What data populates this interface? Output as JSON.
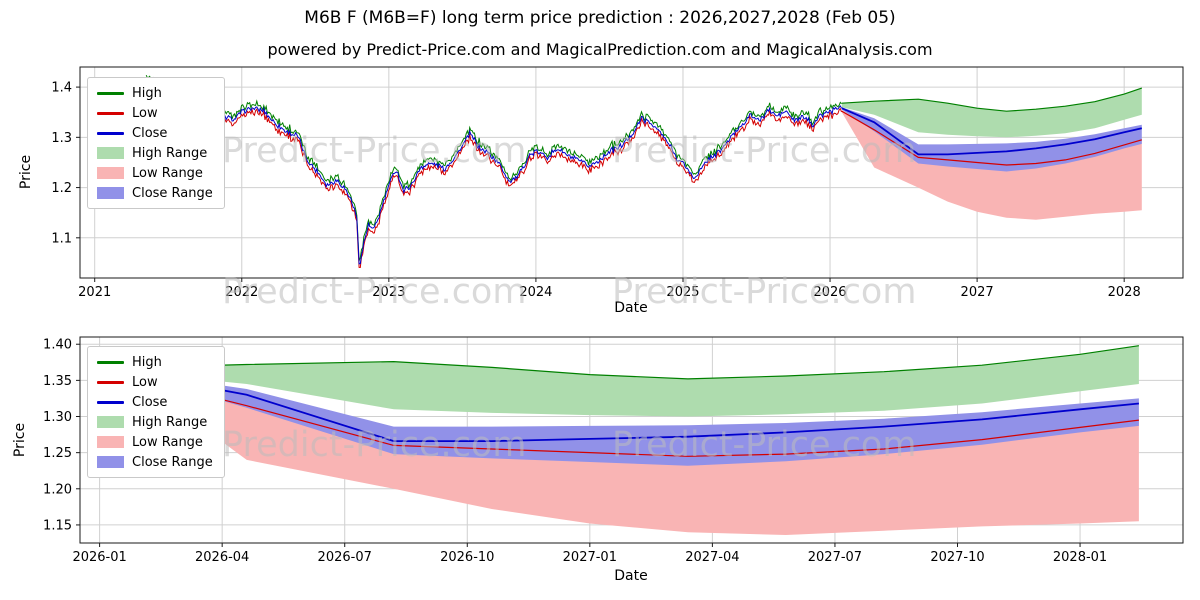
{
  "title": "M6B F (M6B=F) long term price prediction : 2026,2027,2028 (Feb 05)",
  "subtitle": "powered by Predict-Price.com and MagicalPrediction.com and MagicalAnalysis.com",
  "watermark": "Predict-Price.com",
  "colors": {
    "high": "#008000",
    "low": "#d40000",
    "close": "#0000cd",
    "high_range": "#aedcae",
    "low_range": "#f9b4b4",
    "close_range": "#9191e8",
    "grid": "#d0d0d0",
    "frame": "#1a1a1a",
    "background": "#ffffff"
  },
  "legend": {
    "items": [
      {
        "label": "High",
        "swatch": "line",
        "color": "high"
      },
      {
        "label": "Low",
        "swatch": "line",
        "color": "low"
      },
      {
        "label": "Close",
        "swatch": "line",
        "color": "close"
      },
      {
        "label": "High Range",
        "swatch": "patch",
        "color": "high_range"
      },
      {
        "label": "Low Range",
        "swatch": "patch",
        "color": "low_range"
      },
      {
        "label": "Close Range",
        "swatch": "patch",
        "color": "close_range"
      }
    ]
  },
  "chart_data": [
    {
      "id": "history-and-forecast",
      "type": "line",
      "xlabel": "Date",
      "ylabel": "Price",
      "grid": true,
      "legend_position": "upper left",
      "xlim": [
        2020.9,
        2028.4
      ],
      "ylim": [
        1.02,
        1.44
      ],
      "x_ticks": [
        {
          "v": 2021,
          "label": "2021"
        },
        {
          "v": 2022,
          "label": "2022"
        },
        {
          "v": 2023,
          "label": "2023"
        },
        {
          "v": 2024,
          "label": "2024"
        },
        {
          "v": 2025,
          "label": "2025"
        },
        {
          "v": 2026,
          "label": "2026"
        },
        {
          "v": 2027,
          "label": "2027"
        },
        {
          "v": 2028,
          "label": "2028"
        }
      ],
      "y_ticks": [
        {
          "v": 1.1,
          "label": "1.1"
        },
        {
          "v": 1.2,
          "label": "1.2"
        },
        {
          "v": 1.3,
          "label": "1.3"
        },
        {
          "v": 1.4,
          "label": "1.4"
        }
      ],
      "history": {
        "note": "noisy daily High/Low/Close series, trend keypoints below",
        "noise_amplitude": 0.005,
        "high_low_spread": 0.009,
        "t": [
          2021.35,
          2021.42,
          2021.5,
          2021.58,
          2021.65,
          2021.72,
          2021.8,
          2021.88,
          2021.95,
          2022.0,
          2022.08,
          2022.15,
          2022.22,
          2022.3,
          2022.38,
          2022.45,
          2022.52,
          2022.58,
          2022.65,
          2022.7,
          2022.74,
          2022.78,
          2022.8,
          2022.83,
          2022.86,
          2022.9,
          2022.95,
          2023.0,
          2023.05,
          2023.1,
          2023.16,
          2023.22,
          2023.3,
          2023.38,
          2023.45,
          2023.5,
          2023.55,
          2023.62,
          2023.68,
          2023.75,
          2023.82,
          2023.88,
          2023.95,
          2024.0,
          2024.08,
          2024.15,
          2024.22,
          2024.3,
          2024.36,
          2024.42,
          2024.5,
          2024.58,
          2024.65,
          2024.72,
          2024.78,
          2024.84,
          2024.9,
          2024.96,
          2025.02,
          2025.07,
          2025.12,
          2025.18,
          2025.25,
          2025.32,
          2025.4,
          2025.46,
          2025.52,
          2025.58,
          2025.64,
          2025.7,
          2025.76,
          2025.82,
          2025.88,
          2025.94,
          2026.0,
          2026.08
        ],
        "close": [
          1.414,
          1.398,
          1.388,
          1.393,
          1.378,
          1.372,
          1.362,
          1.342,
          1.335,
          1.352,
          1.358,
          1.352,
          1.33,
          1.312,
          1.302,
          1.252,
          1.23,
          1.205,
          1.215,
          1.198,
          1.178,
          1.145,
          1.042,
          1.09,
          1.125,
          1.115,
          1.158,
          1.205,
          1.238,
          1.192,
          1.208,
          1.242,
          1.248,
          1.238,
          1.262,
          1.282,
          1.308,
          1.278,
          1.268,
          1.248,
          1.212,
          1.222,
          1.262,
          1.272,
          1.262,
          1.278,
          1.262,
          1.252,
          1.242,
          1.252,
          1.272,
          1.282,
          1.305,
          1.338,
          1.328,
          1.312,
          1.288,
          1.258,
          1.242,
          1.218,
          1.235,
          1.258,
          1.272,
          1.298,
          1.325,
          1.345,
          1.332,
          1.355,
          1.342,
          1.352,
          1.332,
          1.342,
          1.326,
          1.345,
          1.352,
          1.362
        ]
      },
      "prediction": {
        "t": [
          2026.08,
          2026.3,
          2026.6,
          2026.8,
          2027.0,
          2027.2,
          2027.4,
          2027.6,
          2027.8,
          2028.0,
          2028.12
        ],
        "close": [
          1.358,
          1.33,
          1.266,
          1.266,
          1.269,
          1.272,
          1.278,
          1.286,
          1.296,
          1.31,
          1.318
        ],
        "close_upper": [
          1.36,
          1.338,
          1.286,
          1.286,
          1.287,
          1.288,
          1.291,
          1.297,
          1.306,
          1.318,
          1.325
        ],
        "close_lower": [
          1.355,
          1.312,
          1.248,
          1.242,
          1.237,
          1.232,
          1.238,
          1.248,
          1.261,
          1.278,
          1.287
        ],
        "high_upper": [
          1.368,
          1.372,
          1.376,
          1.368,
          1.358,
          1.352,
          1.356,
          1.362,
          1.371,
          1.386,
          1.398
        ],
        "high_lower": [
          1.36,
          1.345,
          1.31,
          1.305,
          1.302,
          1.3,
          1.303,
          1.308,
          1.318,
          1.335,
          1.345
        ],
        "low_upper": [
          1.352,
          1.315,
          1.26,
          1.255,
          1.25,
          1.245,
          1.248,
          1.255,
          1.268,
          1.285,
          1.295
        ],
        "low_lower": [
          1.35,
          1.24,
          1.2,
          1.172,
          1.152,
          1.14,
          1.136,
          1.142,
          1.148,
          1.152,
          1.155
        ]
      }
    },
    {
      "id": "forecast-detail",
      "type": "area",
      "xlabel": "Date",
      "ylabel": "Price",
      "grid": true,
      "legend_position": "upper left",
      "xlim": [
        2025.96,
        2028.21
      ],
      "ylim": [
        1.125,
        1.41
      ],
      "x_ticks": [
        {
          "v": 2026.0,
          "label": "2026-01"
        },
        {
          "v": 2026.25,
          "label": "2026-04"
        },
        {
          "v": 2026.5,
          "label": "2026-07"
        },
        {
          "v": 2026.75,
          "label": "2026-10"
        },
        {
          "v": 2027.0,
          "label": "2027-01"
        },
        {
          "v": 2027.25,
          "label": "2027-04"
        },
        {
          "v": 2027.5,
          "label": "2027-07"
        },
        {
          "v": 2027.75,
          "label": "2027-10"
        },
        {
          "v": 2028.0,
          "label": "2028-01"
        }
      ],
      "y_ticks": [
        {
          "v": 1.4,
          "label": "1.40"
        },
        {
          "v": 1.35,
          "label": "1.35"
        },
        {
          "v": 1.3,
          "label": "1.30"
        },
        {
          "v": 1.25,
          "label": "1.25"
        },
        {
          "v": 1.2,
          "label": "1.20"
        },
        {
          "v": 1.15,
          "label": "1.15"
        }
      ],
      "prediction_source": "same series as chart 1 prediction"
    }
  ]
}
